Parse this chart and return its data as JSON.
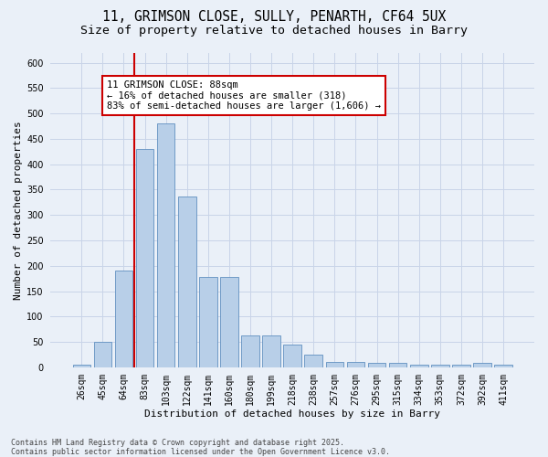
{
  "title1": "11, GRIMSON CLOSE, SULLY, PENARTH, CF64 5UX",
  "title2": "Size of property relative to detached houses in Barry",
  "xlabel": "Distribution of detached houses by size in Barry",
  "ylabel": "Number of detached properties",
  "categories": [
    "26sqm",
    "45sqm",
    "64sqm",
    "83sqm",
    "103sqm",
    "122sqm",
    "141sqm",
    "160sqm",
    "180sqm",
    "199sqm",
    "218sqm",
    "238sqm",
    "257sqm",
    "276sqm",
    "295sqm",
    "315sqm",
    "334sqm",
    "353sqm",
    "372sqm",
    "392sqm",
    "411sqm"
  ],
  "values": [
    5,
    50,
    190,
    430,
    480,
    337,
    178,
    178,
    62,
    62,
    44,
    25,
    11,
    11,
    8,
    8,
    5,
    5,
    5,
    8,
    5
  ],
  "bar_color": "#b8cfe8",
  "bar_edge_color": "#6090c0",
  "red_line_x": 2.5,
  "annotation_text": "11 GRIMSON CLOSE: 88sqm\n← 16% of detached houses are smaller (318)\n83% of semi-detached houses are larger (1,606) →",
  "red_line_color": "#cc0000",
  "annotation_box_facecolor": "#ffffff",
  "annotation_box_edgecolor": "#cc0000",
  "grid_color": "#c8d4e8",
  "bg_color": "#eaf0f8",
  "ylim_max": 620,
  "yticks": [
    0,
    50,
    100,
    150,
    200,
    250,
    300,
    350,
    400,
    450,
    500,
    550,
    600
  ],
  "footnote": "Contains HM Land Registry data © Crown copyright and database right 2025.\nContains public sector information licensed under the Open Government Licence v3.0.",
  "title1_fontsize": 10.5,
  "title2_fontsize": 9.5,
  "axis_label_fontsize": 8,
  "tick_fontsize": 7,
  "annotation_fontsize": 7.5,
  "footnote_fontsize": 6
}
